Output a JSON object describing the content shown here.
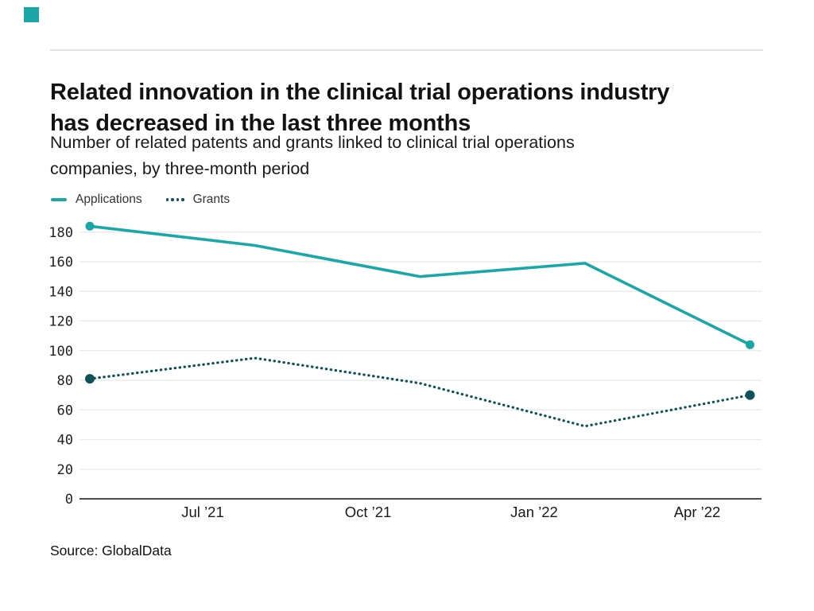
{
  "header": {
    "logo_color": "#1BA7A7",
    "title_lines": [
      "Related innovation in the clinical trial operations industry",
      "has decreased in the last three months"
    ],
    "subtitle_lines": [
      "Number of related patents and grants linked to clinical trial operations",
      "companies, by three-month period"
    ]
  },
  "legend": {
    "items": [
      {
        "label": "Applications",
        "style": "solid",
        "color": "#1BA7A7"
      },
      {
        "label": "Grants",
        "style": "dotted",
        "color": "#0F5257"
      }
    ]
  },
  "chart_data": {
    "type": "line",
    "title": "Number of related patents and grants linked to clinical trial operations companies, by three-month period",
    "x_tick_labels": [
      "Jul ’21",
      "Oct ’21",
      "Jan ’22",
      "Apr ’22"
    ],
    "estimated_x_points": [
      "May ’21",
      "Aug ’21",
      "Nov ’21",
      "Feb ’22",
      "May ’22"
    ],
    "y_ticks": [
      0,
      20,
      40,
      60,
      80,
      100,
      120,
      140,
      160,
      180
    ],
    "ylim": [
      0,
      180
    ],
    "grid": "horizontal",
    "legend_position": "top-left",
    "series": [
      {
        "name": "Applications",
        "style": "solid",
        "color": "#1BA7A7",
        "values": [
          184,
          171,
          150,
          159,
          104
        ]
      },
      {
        "name": "Grants",
        "style": "dotted",
        "color": "#0F5257",
        "values": [
          81,
          95,
          78,
          49,
          70
        ]
      }
    ],
    "colors": {
      "gridline": "#e8e8e8",
      "zero_axis": "#4d4d4d",
      "y_tick_text": "#222222",
      "x_tick_text": "#1a1a1a"
    }
  },
  "footer": {
    "source": "Source: GlobalData"
  }
}
